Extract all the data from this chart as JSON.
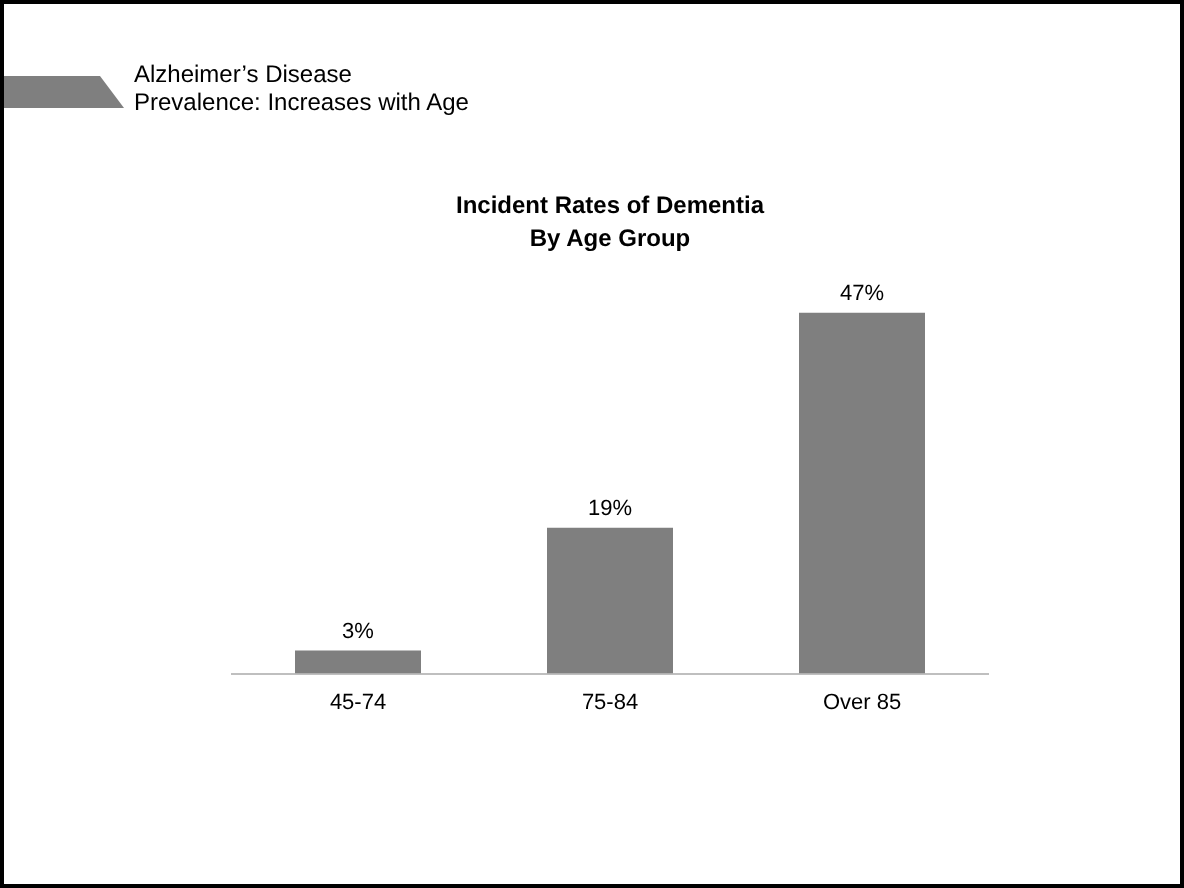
{
  "chart_data": {
    "type": "bar",
    "title": "Incident Rates of Dementia",
    "subtitle": "By Age Group",
    "annotations": [
      "Alzheimer’s Disease",
      "Prevalence:  Increases with Age"
    ],
    "categories": [
      "45-74",
      "75-84",
      "Over 85"
    ],
    "values": [
      3,
      19,
      47
    ],
    "value_labels": [
      "3%",
      "19%",
      "47%"
    ],
    "color": "#7f7f7f",
    "grid": false,
    "legend": false,
    "tick_labels": "x"
  }
}
